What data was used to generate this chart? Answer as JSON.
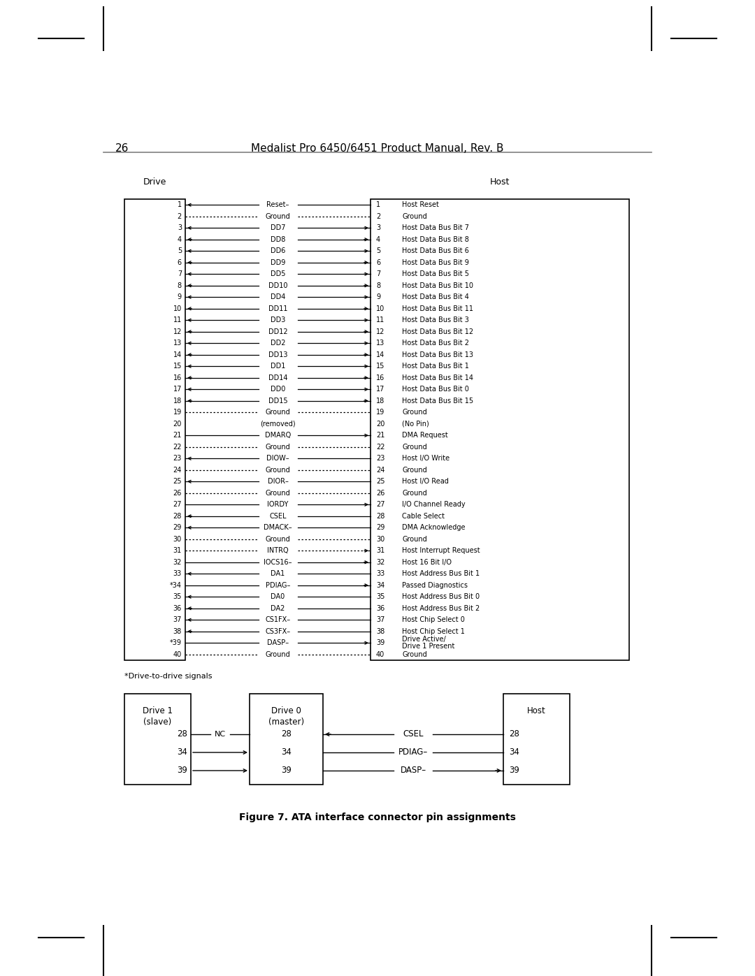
{
  "title_page": "26",
  "title_center": "Medalist Pro 6450/6451 Product Manual, Rev. B",
  "drive_label": "Drive",
  "host_label": "Host",
  "figure_caption": "Figure 7. ATA interface connector pin assignments",
  "drive_to_drive_note": "*Drive-to-drive signals",
  "pins": [
    {
      "num": 1,
      "signal": "Reset–",
      "drive_num": "1",
      "host_num": "1",
      "host_desc": "Host Reset",
      "arrow": "left",
      "line_style": "solid"
    },
    {
      "num": 2,
      "signal": "Ground",
      "drive_num": "2",
      "host_num": "2",
      "host_desc": "Ground",
      "arrow": "none",
      "line_style": "dotted"
    },
    {
      "num": 3,
      "signal": "DD7",
      "drive_num": "3",
      "host_num": "3",
      "host_desc": "Host Data Bus Bit 7",
      "arrow": "both",
      "line_style": "solid"
    },
    {
      "num": 4,
      "signal": "DD8",
      "drive_num": "4",
      "host_num": "4",
      "host_desc": "Host Data Bus Bit 8",
      "arrow": "both",
      "line_style": "solid"
    },
    {
      "num": 5,
      "signal": "DD6",
      "drive_num": "5",
      "host_num": "5",
      "host_desc": "Host Data Bus Bit 6",
      "arrow": "both",
      "line_style": "solid"
    },
    {
      "num": 6,
      "signal": "DD9",
      "drive_num": "6",
      "host_num": "6",
      "host_desc": "Host Data Bus Bit 9",
      "arrow": "both",
      "line_style": "solid"
    },
    {
      "num": 7,
      "signal": "DD5",
      "drive_num": "7",
      "host_num": "7",
      "host_desc": "Host Data Bus Bit 5",
      "arrow": "both",
      "line_style": "solid"
    },
    {
      "num": 8,
      "signal": "DD10",
      "drive_num": "8",
      "host_num": "8",
      "host_desc": "Host Data Bus Bit 10",
      "arrow": "both",
      "line_style": "solid"
    },
    {
      "num": 9,
      "signal": "DD4",
      "drive_num": "9",
      "host_num": "9",
      "host_desc": "Host Data Bus Bit 4",
      "arrow": "both",
      "line_style": "solid"
    },
    {
      "num": 10,
      "signal": "DD11",
      "drive_num": "10",
      "host_num": "10",
      "host_desc": "Host Data Bus Bit 11",
      "arrow": "both",
      "line_style": "solid"
    },
    {
      "num": 11,
      "signal": "DD3",
      "drive_num": "11",
      "host_num": "11",
      "host_desc": "Host Data Bus Bit 3",
      "arrow": "both",
      "line_style": "solid"
    },
    {
      "num": 12,
      "signal": "DD12",
      "drive_num": "12",
      "host_num": "12",
      "host_desc": "Host Data Bus Bit 12",
      "arrow": "both",
      "line_style": "solid"
    },
    {
      "num": 13,
      "signal": "DD2",
      "drive_num": "13",
      "host_num": "13",
      "host_desc": "Host Data Bus Bit 2",
      "arrow": "both",
      "line_style": "solid"
    },
    {
      "num": 14,
      "signal": "DD13",
      "drive_num": "14",
      "host_num": "14",
      "host_desc": "Host Data Bus Bit 13",
      "arrow": "both",
      "line_style": "solid"
    },
    {
      "num": 15,
      "signal": "DD1",
      "drive_num": "15",
      "host_num": "15",
      "host_desc": "Host Data Bus Bit 1",
      "arrow": "both",
      "line_style": "solid"
    },
    {
      "num": 16,
      "signal": "DD14",
      "drive_num": "16",
      "host_num": "16",
      "host_desc": "Host Data Bus Bit 14",
      "arrow": "both",
      "line_style": "solid"
    },
    {
      "num": 17,
      "signal": "DD0",
      "drive_num": "17",
      "host_num": "17",
      "host_desc": "Host Data Bus Bit 0",
      "arrow": "both",
      "line_style": "solid"
    },
    {
      "num": 18,
      "signal": "DD15",
      "drive_num": "18",
      "host_num": "18",
      "host_desc": "Host Data Bus Bit 15",
      "arrow": "both",
      "line_style": "solid"
    },
    {
      "num": 19,
      "signal": "Ground",
      "drive_num": "19",
      "host_num": "19",
      "host_desc": "Ground",
      "arrow": "none",
      "line_style": "dotted"
    },
    {
      "num": 20,
      "signal": "(removed)",
      "drive_num": "20",
      "host_num": "20",
      "host_desc": "(No Pin)",
      "arrow": "none",
      "line_style": "none"
    },
    {
      "num": 21,
      "signal": "DMARQ",
      "drive_num": "21",
      "host_num": "21",
      "host_desc": "DMA Request",
      "arrow": "right",
      "line_style": "solid"
    },
    {
      "num": 22,
      "signal": "Ground",
      "drive_num": "22",
      "host_num": "22",
      "host_desc": "Ground",
      "arrow": "none",
      "line_style": "dotted"
    },
    {
      "num": 23,
      "signal": "DIOW–",
      "drive_num": "23",
      "host_num": "23",
      "host_desc": "Host I/O Write",
      "arrow": "left",
      "line_style": "solid"
    },
    {
      "num": 24,
      "signal": "Ground",
      "drive_num": "24",
      "host_num": "24",
      "host_desc": "Ground",
      "arrow": "none",
      "line_style": "dotted"
    },
    {
      "num": 25,
      "signal": "DIOR–",
      "drive_num": "25",
      "host_num": "25",
      "host_desc": "Host I/O Read",
      "arrow": "left",
      "line_style": "solid"
    },
    {
      "num": 26,
      "signal": "Ground",
      "drive_num": "26",
      "host_num": "26",
      "host_desc": "Ground",
      "arrow": "none",
      "line_style": "dotted"
    },
    {
      "num": 27,
      "signal": "IORDY",
      "drive_num": "27",
      "host_num": "27",
      "host_desc": "I/O Channel Ready",
      "arrow": "right",
      "line_style": "solid"
    },
    {
      "num": 28,
      "signal": "CSEL",
      "drive_num": "28",
      "host_num": "28",
      "host_desc": "Cable Select",
      "arrow": "left",
      "line_style": "solid"
    },
    {
      "num": 29,
      "signal": "DMACK–",
      "drive_num": "29",
      "host_num": "29",
      "host_desc": "DMA Acknowledge",
      "arrow": "left",
      "line_style": "solid"
    },
    {
      "num": 30,
      "signal": "Ground",
      "drive_num": "30",
      "host_num": "30",
      "host_desc": "Ground",
      "arrow": "none",
      "line_style": "dotted"
    },
    {
      "num": 31,
      "signal": "INTRQ",
      "drive_num": "31",
      "host_num": "31",
      "host_desc": "Host Interrupt Request",
      "arrow": "right",
      "line_style": "dotted"
    },
    {
      "num": 32,
      "signal": "IOCS16–",
      "drive_num": "32",
      "host_num": "32",
      "host_desc": "Host 16 Bit I/O",
      "arrow": "right",
      "line_style": "solid"
    },
    {
      "num": 33,
      "signal": "DA1",
      "drive_num": "33",
      "host_num": "33",
      "host_desc": "Host Address Bus Bit 1",
      "arrow": "left",
      "line_style": "solid"
    },
    {
      "num": 34,
      "signal": "PDIAG–",
      "drive_num": "*34",
      "host_num": "34",
      "host_desc": "Passed Diagnostics",
      "arrow": "right",
      "line_style": "solid"
    },
    {
      "num": 35,
      "signal": "DA0",
      "drive_num": "35",
      "host_num": "35",
      "host_desc": "Host Address Bus Bit 0",
      "arrow": "left",
      "line_style": "solid"
    },
    {
      "num": 36,
      "signal": "DA2",
      "drive_num": "36",
      "host_num": "36",
      "host_desc": "Host Address Bus Bit 2",
      "arrow": "left",
      "line_style": "solid"
    },
    {
      "num": 37,
      "signal": "CS1FX–",
      "drive_num": "37",
      "host_num": "37",
      "host_desc": "Host Chip Select 0",
      "arrow": "left",
      "line_style": "solid"
    },
    {
      "num": 38,
      "signal": "CS3FX–",
      "drive_num": "38",
      "host_num": "38",
      "host_desc": "Host Chip Select 1",
      "arrow": "left",
      "line_style": "solid"
    },
    {
      "num": 39,
      "signal": "DASP–",
      "drive_num": "*39",
      "host_num": "39",
      "host_desc": "Drive Active/",
      "host_desc2": "    Drive 1 Present",
      "arrow": "right",
      "line_style": "solid"
    },
    {
      "num": 40,
      "signal": "Ground",
      "drive_num": "40",
      "host_num": "40",
      "host_desc": "Ground",
      "arrow": "none",
      "line_style": "dotted"
    }
  ]
}
